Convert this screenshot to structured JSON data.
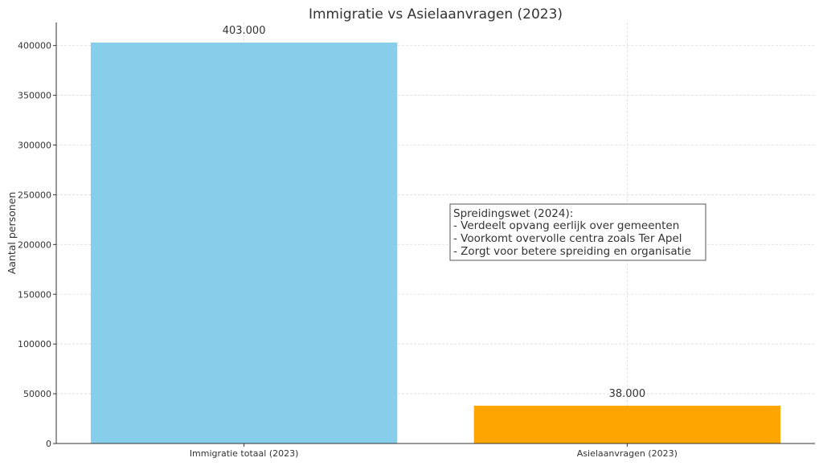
{
  "chart_data": {
    "type": "bar",
    "title": "Immigratie vs Asielaanvragen (2023)",
    "xlabel": "",
    "ylabel": "Aantal personen",
    "categories": [
      "Immigratie totaal (2023)",
      "Asielaanvragen (2023)"
    ],
    "values": [
      403000,
      38000
    ],
    "data_labels": [
      "403.000",
      "38.000"
    ],
    "colors": [
      "#87ceeb",
      "#ffa500"
    ],
    "ylim": [
      0,
      423150
    ],
    "yticks": [
      0,
      50000,
      100000,
      150000,
      200000,
      250000,
      300000,
      350000,
      400000
    ],
    "ytick_labels": [
      "0",
      "50000",
      "100000",
      "150000",
      "200000",
      "250000",
      "300000",
      "350000",
      "400000"
    ],
    "grid": true,
    "annotation": {
      "lines": [
        "Spreidingswet (2024):",
        "- Verdeelt opvang eerlijk over gemeenten",
        "- Voorkomt overvolle centra zoals Ter Apel",
        "- Zorgt voor betere spreiding en organisatie"
      ]
    }
  }
}
